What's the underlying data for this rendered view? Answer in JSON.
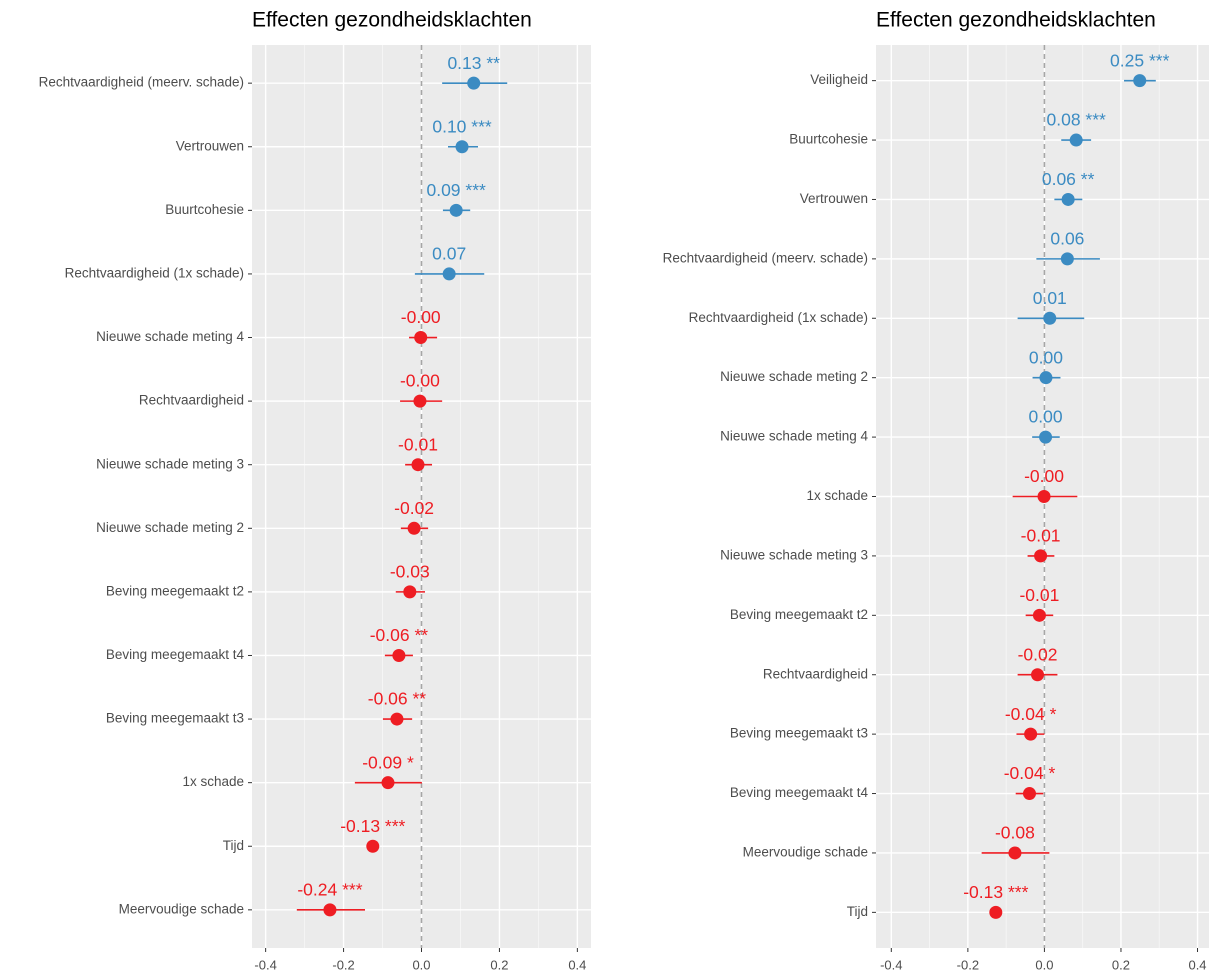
{
  "chart_data": [
    {
      "type": "forest",
      "title": "Effecten gezondheidsklachten",
      "categories": [
        "Rechtvaardigheid (meerv. schade)",
        "Vertrouwen",
        "Buurtcohesie",
        "Rechtvaardigheid (1x schade)",
        "Nieuwe schade meting 4",
        "Rechtvaardigheid",
        "Nieuwe schade meting 3",
        "Nieuwe schade meting 2",
        "Beving meegemaakt t2",
        "Beving meegemaakt t4",
        "Beving meegemaakt t3",
        "1x schade",
        "Tijd",
        "Meervoudige schade"
      ],
      "values": [
        0.134,
        0.104,
        0.089,
        0.071,
        -0.002,
        -0.004,
        -0.009,
        -0.019,
        -0.03,
        -0.058,
        -0.063,
        -0.086,
        -0.125,
        -0.235
      ],
      "value_labels": [
        "0.13 **",
        "0.10 ***",
        "0.09 ***",
        "0.07",
        "-0.00",
        "-0.00",
        "-0.01",
        "-0.02",
        "-0.03",
        "-0.06 **",
        "-0.06 **",
        "-0.09 *",
        "-0.13 ***",
        "-0.24 ***"
      ],
      "ci_low": [
        0.053,
        0.068,
        0.055,
        -0.017,
        -0.032,
        -0.055,
        -0.042,
        -0.053,
        -0.066,
        -0.094,
        -0.099,
        -0.171,
        -0.132,
        -0.32
      ],
      "ci_high": [
        0.22,
        0.145,
        0.125,
        0.161,
        0.04,
        0.053,
        0.027,
        0.017,
        0.009,
        -0.022,
        -0.024,
        0.001,
        -0.118,
        -0.145
      ],
      "colors": [
        "#3b8bc2",
        "#3b8bc2",
        "#3b8bc2",
        "#3b8bc2",
        "#ee1d23",
        "#ee1d23",
        "#ee1d23",
        "#ee1d23",
        "#ee1d23",
        "#ee1d23",
        "#ee1d23",
        "#ee1d23",
        "#ee1d23",
        "#ee1d23"
      ],
      "xlim": [
        -0.435,
        0.435
      ],
      "xticks": [
        -0.4,
        -0.2,
        {
          "value": 0,
          "label": "0.0"
        },
        0.2,
        0.4
      ],
      "reference_line": 0,
      "grid": true
    },
    {
      "type": "forest",
      "title": "Effecten gezondheidsklachten",
      "categories": [
        "Veiligheid",
        "Buurtcohesie",
        "Vertrouwen",
        "Rechtvaardigheid (meerv. schade)",
        "Rechtvaardigheid (1x schade)",
        "Nieuwe schade meting 2",
        "Nieuwe schade meting 4",
        "1x schade",
        "Nieuwe schade meting 3",
        "Beving meegemaakt t2",
        "Rechtvaardigheid",
        "Beving meegemaakt t3",
        "Beving meegemaakt t4",
        "Meervoudige schade",
        "Tijd"
      ],
      "values": [
        0.249,
        0.083,
        0.062,
        0.06,
        0.014,
        0.004,
        0.003,
        -0.001,
        -0.01,
        -0.013,
        -0.018,
        -0.036,
        -0.039,
        -0.077,
        -0.127
      ],
      "value_labels": [
        "0.25 ***",
        "0.08 ***",
        "0.06 **",
        "0.06",
        "0.01",
        "0.00",
        "0.00",
        "-0.00",
        "-0.01",
        "-0.01",
        "-0.02",
        "-0.04 *",
        "-0.04 *",
        "-0.08",
        "-0.13 ***"
      ],
      "ci_low": [
        0.208,
        0.044,
        0.026,
        -0.021,
        -0.07,
        -0.031,
        -0.032,
        -0.083,
        -0.044,
        -0.049,
        -0.07,
        -0.073,
        -0.075,
        -0.164,
        -0.134
      ],
      "ci_high": [
        0.291,
        0.122,
        0.099,
        0.145,
        0.104,
        0.042,
        0.04,
        0.086,
        0.026,
        0.023,
        0.034,
        0,
        -0.003,
        0.013,
        -0.12
      ],
      "colors": [
        "#3b8bc2",
        "#3b8bc2",
        "#3b8bc2",
        "#3b8bc2",
        "#3b8bc2",
        "#3b8bc2",
        "#3b8bc2",
        "#ee1d23",
        "#ee1d23",
        "#ee1d23",
        "#ee1d23",
        "#ee1d23",
        "#ee1d23",
        "#ee1d23",
        "#ee1d23"
      ],
      "xlim": [
        -0.44,
        0.43
      ],
      "xticks": [
        -0.4,
        -0.2,
        {
          "value": 0,
          "label": "0.0"
        },
        0.2,
        0.4
      ],
      "reference_line": 0,
      "grid": true
    }
  ]
}
